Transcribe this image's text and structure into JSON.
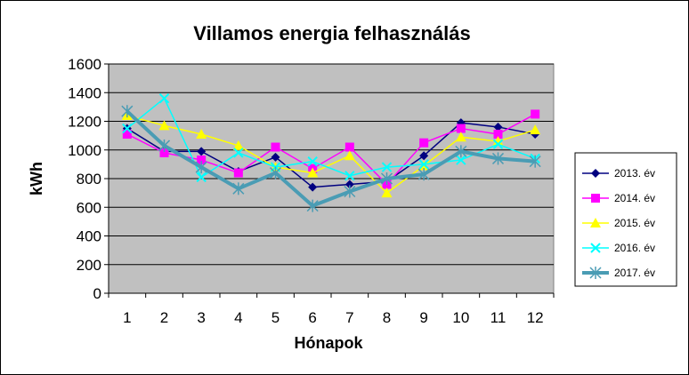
{
  "chart_data": {
    "type": "line",
    "title": "Villamos energia felhasználás",
    "xlabel": "Hónapok",
    "ylabel": "kWh",
    "categories": [
      "1",
      "2",
      "3",
      "4",
      "5",
      "6",
      "7",
      "8",
      "9",
      "10",
      "11",
      "12"
    ],
    "ylim": [
      0,
      1600
    ],
    "yticks": [
      "0",
      "200",
      "400",
      "600",
      "800",
      "1000",
      "1200",
      "1400",
      "1600"
    ],
    "grid": true,
    "legend_position": "right",
    "plot_background": "#c0c0c0",
    "series": [
      {
        "name": "2013. év",
        "color": "#000080",
        "marker": "diamond",
        "values": [
          1150,
          990,
          990,
          850,
          950,
          740,
          760,
          780,
          960,
          1190,
          1160,
          1110
        ]
      },
      {
        "name": "2014. év",
        "color": "#ff00ff",
        "marker": "square",
        "values": [
          1110,
          980,
          930,
          840,
          1020,
          870,
          1020,
          760,
          1050,
          1150,
          1110,
          1250
        ]
      },
      {
        "name": "2015. év",
        "color": "#ffff00",
        "marker": "triangle",
        "values": [
          1240,
          1170,
          1110,
          1030,
          880,
          840,
          960,
          700,
          890,
          1090,
          1060,
          1140
        ]
      },
      {
        "name": "2016. év",
        "color": "#00ffff",
        "marker": "x",
        "values": [
          1150,
          1360,
          810,
          980,
          880,
          920,
          820,
          880,
          900,
          930,
          1040,
          940
        ]
      },
      {
        "name": "2017. év",
        "color": "#4a9cb4",
        "marker": "star",
        "values": [
          1270,
          1030,
          880,
          730,
          840,
          610,
          710,
          800,
          830,
          990,
          940,
          920
        ]
      }
    ]
  }
}
